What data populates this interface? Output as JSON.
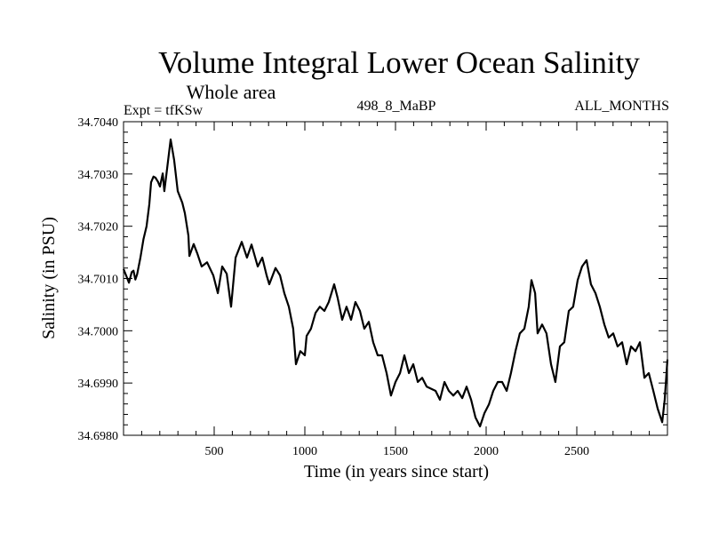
{
  "chart_data": {
    "type": "line",
    "title": "Volume Integral Lower Ocean Salinity",
    "subtitle": "Whole area",
    "annotations": {
      "left": "Expt = tfKSw",
      "center": "498_8_MaBP",
      "right": "ALL_MONTHS"
    },
    "xlabel": "Time (in years since start)",
    "ylabel": "Salinity (in PSU)",
    "xlim": [
      0,
      3000
    ],
    "ylim": [
      34.698,
      34.704
    ],
    "x_ticks": [
      500,
      1000,
      1500,
      2000,
      2500
    ],
    "x_tick_labels": [
      "500",
      "1000",
      "1500",
      "2000",
      "2500"
    ],
    "x_minor_step": 100,
    "y_ticks": [
      34.698,
      34.699,
      34.7,
      34.701,
      34.702,
      34.703,
      34.704
    ],
    "y_tick_labels": [
      "34.6980",
      "34.6990",
      "34.7000",
      "34.7010",
      "34.7020",
      "34.7030",
      "34.7040"
    ],
    "y_minor_step": 0.0002,
    "grid": false,
    "legend": "none",
    "series": [
      {
        "name": "Salinity",
        "color": "#000000",
        "x": [
          0,
          15,
          30,
          45,
          55,
          65,
          75,
          93,
          110,
          127,
          142,
          152,
          165,
          176,
          190,
          201,
          216,
          225,
          240,
          260,
          279,
          299,
          324,
          338,
          358,
          363,
          387,
          407,
          431,
          461,
          495,
          520,
          544,
          569,
          593,
          618,
          652,
          681,
          706,
          740,
          765,
          789,
          804,
          838,
          863,
          887,
          912,
          936,
          951,
          975,
          1000,
          1010,
          1034,
          1059,
          1083,
          1108,
          1132,
          1162,
          1181,
          1206,
          1230,
          1255,
          1279,
          1304,
          1328,
          1353,
          1377,
          1402,
          1426,
          1451,
          1475,
          1500,
          1525,
          1549,
          1574,
          1598,
          1623,
          1647,
          1672,
          1721,
          1745,
          1770,
          1794,
          1819,
          1843,
          1868,
          1892,
          1917,
          1941,
          1966,
          1990,
          2015,
          2039,
          2064,
          2088,
          2113,
          2137,
          2162,
          2186,
          2211,
          2235,
          2250,
          2270,
          2284,
          2309,
          2333,
          2358,
          2382,
          2407,
          2431,
          2456,
          2480,
          2505,
          2529,
          2554,
          2578,
          2603,
          2627,
          2652,
          2676,
          2701,
          2725,
          2750,
          2775,
          2799,
          2824,
          2848,
          2873,
          2897,
          2922,
          2946,
          2971,
          2985,
          3000
        ],
        "y": [
          34.70118,
          34.70105,
          34.70092,
          34.70112,
          34.70115,
          34.70098,
          34.70108,
          34.7014,
          34.70175,
          34.702,
          34.70242,
          34.70284,
          34.70295,
          34.70293,
          34.70285,
          34.70276,
          34.70301,
          34.70267,
          34.7031,
          34.70366,
          34.70327,
          34.70267,
          34.70245,
          34.70225,
          34.70182,
          34.70143,
          34.70166,
          34.70148,
          34.70123,
          34.70131,
          34.70106,
          34.70072,
          34.70123,
          34.70109,
          34.70046,
          34.7014,
          34.7017,
          34.7014,
          34.70165,
          34.70123,
          34.7014,
          34.70106,
          34.70089,
          34.7012,
          34.70106,
          34.70072,
          34.70046,
          34.70004,
          34.69936,
          34.69961,
          34.69953,
          34.6999,
          34.70004,
          34.70034,
          34.70046,
          34.70038,
          34.70055,
          34.70089,
          34.70063,
          34.70021,
          34.70046,
          34.70021,
          34.70055,
          34.70038,
          34.70004,
          34.70017,
          34.69978,
          34.69953,
          34.69953,
          34.69919,
          34.69876,
          34.69902,
          34.69919,
          34.69953,
          34.69919,
          34.69936,
          34.69902,
          34.6991,
          34.69893,
          34.69885,
          34.69868,
          34.69902,
          34.69885,
          34.69876,
          34.69885,
          34.69871,
          34.69893,
          34.69868,
          34.69834,
          34.69817,
          34.69842,
          34.69859,
          34.69885,
          34.69902,
          34.69902,
          34.69885,
          34.69919,
          34.69961,
          34.69995,
          34.70004,
          34.70046,
          34.70097,
          34.70072,
          34.69995,
          34.70012,
          34.69995,
          34.69936,
          34.69902,
          34.6997,
          34.69978,
          34.70038,
          34.70046,
          34.70097,
          34.70123,
          34.70135,
          34.70089,
          34.70072,
          34.70046,
          34.70012,
          34.69987,
          34.69995,
          34.6997,
          34.69978,
          34.69936,
          34.6997,
          34.69961,
          34.69978,
          34.6991,
          34.69919,
          34.69885,
          34.69851,
          34.69825,
          34.69868,
          34.69945
        ]
      }
    ]
  }
}
